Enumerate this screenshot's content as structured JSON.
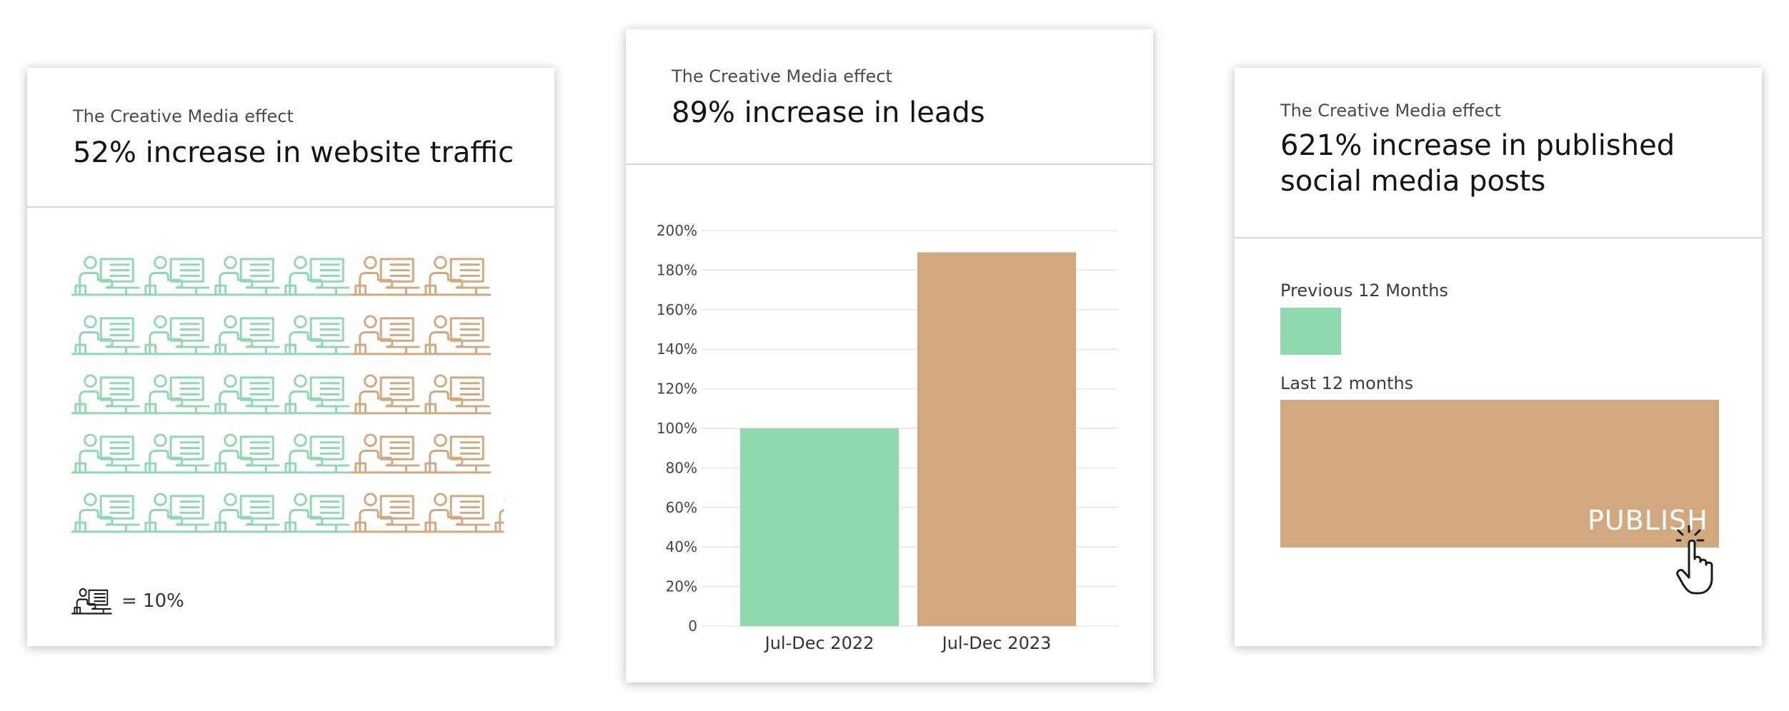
{
  "cards": [
    {
      "eyebrow": "The Creative Media effect",
      "headline": "52% increase in website traffic",
      "legend_text": "= 10%"
    },
    {
      "eyebrow": "The Creative Media effect",
      "headline": "89% increase in leads"
    },
    {
      "eyebrow": "The Creative Media effect",
      "headline": "621% increase in published social media posts",
      "publish_label": "PUBLISH"
    }
  ],
  "colors": {
    "previous": "#8fd8b0",
    "current": "#d2a97f",
    "grid": "#e6e6e6",
    "text": "#1b1b1b"
  },
  "chart_data": [
    {
      "type": "pictogram",
      "unit_label": "= 10%",
      "rows": [
        {
          "previous_icons": 4,
          "current_icons": 2
        },
        {
          "previous_icons": 4,
          "current_icons": 2
        },
        {
          "previous_icons": 4,
          "current_icons": 2
        },
        {
          "previous_icons": 4,
          "current_icons": 2
        },
        {
          "previous_icons": 4,
          "current_icons": 2.2
        }
      ]
    },
    {
      "type": "bar",
      "categories": [
        "Jul-Dec 2022",
        "Jul-Dec 2023"
      ],
      "values": [
        100,
        189
      ],
      "ylim": [
        0,
        200
      ],
      "yticks": [
        "0",
        "20%",
        "40%",
        "60%",
        "80%",
        "100%",
        "120%",
        "140%",
        "160%",
        "180%",
        "200%"
      ],
      "grid": true
    },
    {
      "type": "bar",
      "orientation": "horizontal",
      "categories": [
        "Previous 12 Months",
        "Last 12 months"
      ],
      "values": [
        100,
        721
      ]
    }
  ]
}
